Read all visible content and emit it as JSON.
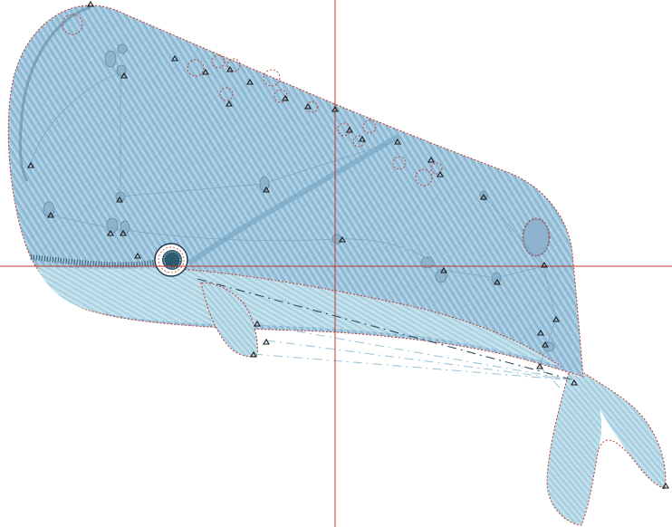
{
  "colors": {
    "body_fill": "#9cc4dd",
    "belly_fill": "#b9dbe8",
    "tail_fill": "#b4d8e7",
    "stitch_dark": "#6f9fc0",
    "stitch_light": "#d7edf5",
    "outline": "#c0392b",
    "guide": "#c0392b",
    "eye_ring": "#1f3a4f",
    "mouth": "#2d5b6e",
    "jump_dark": "#2b4d63",
    "jump_light": "#9fc7d9",
    "marker": "#1a1a1a"
  },
  "icons": {
    "stitch_marker": "triangle-marker-icon",
    "eye": "eye-icon",
    "crosshair": "crosshair-guide-icon"
  }
}
